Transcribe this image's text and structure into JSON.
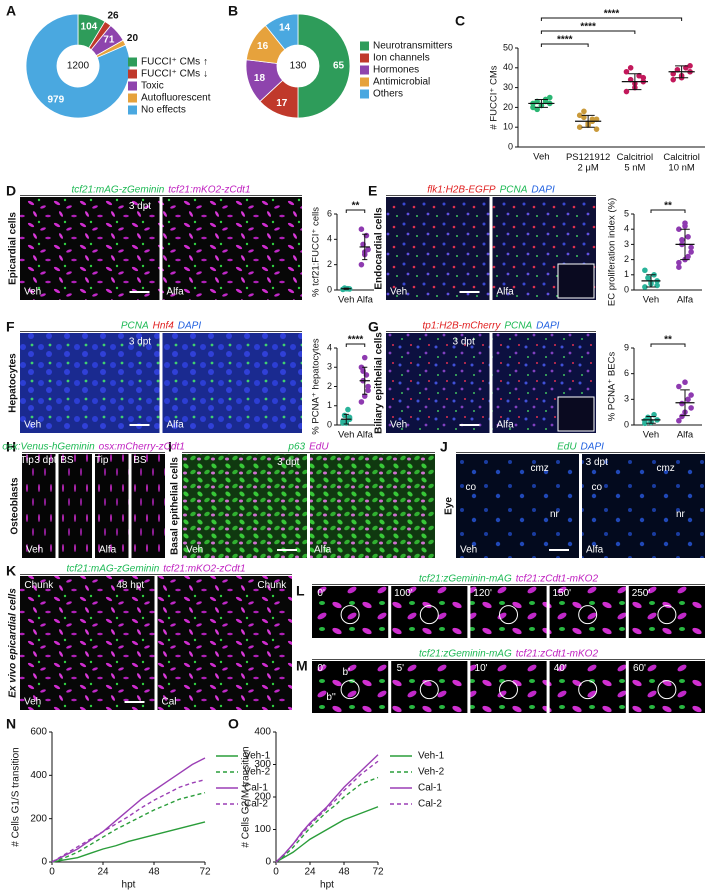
{
  "panel_labels": [
    "A",
    "B",
    "C",
    "D",
    "E",
    "F",
    "G",
    "H",
    "I",
    "J",
    "K",
    "L",
    "M",
    "N",
    "O"
  ],
  "charts": {
    "A": {
      "type": "donut",
      "total": 1200,
      "categories": [
        "FUCCI⁺ CMs ↑",
        "FUCCI⁺ CMs ↓",
        "Toxic",
        "Autofluorescent",
        "No effects"
      ],
      "values": [
        104,
        26,
        71,
        20,
        979
      ],
      "colors": [
        "#2e9c5a",
        "#c0392b",
        "#8e44ad",
        "#e6a23c",
        "#4aa8e0"
      ]
    },
    "B": {
      "type": "donut",
      "total": 130,
      "categories": [
        "Neurotransmitters",
        "Ion channels",
        "Hormones",
        "Antimicrobial",
        "Others"
      ],
      "values": [
        65,
        17,
        18,
        16,
        14
      ],
      "colors": [
        "#2e9c5a",
        "#c0392b",
        "#8e44ad",
        "#e6a23c",
        "#4aa8e0"
      ]
    },
    "C": {
      "type": "dot",
      "ylabel": "# FUCCI⁺ CMs",
      "categories": [
        "Veh",
        "PS121912\n2 μM",
        "Calcitriol\n5 nM",
        "Calcitriol\n10 nM"
      ],
      "colors": [
        "#2bb673",
        "#c99a3b",
        "#c2185b",
        "#c2185b"
      ],
      "groups": [
        {
          "points": [
            20,
            21,
            22,
            23,
            24,
            22,
            21,
            25,
            19,
            23
          ],
          "mean": 22,
          "sd": 2
        },
        {
          "points": [
            10,
            12,
            14,
            15,
            13,
            16,
            11,
            9,
            18,
            14
          ],
          "mean": 13,
          "sd": 3
        },
        {
          "points": [
            28,
            30,
            33,
            34,
            36,
            38,
            32,
            35,
            40
          ],
          "mean": 33,
          "sd": 4
        },
        {
          "points": [
            34,
            36,
            38,
            39,
            40,
            37,
            35,
            41
          ],
          "mean": 38,
          "sd": 3
        }
      ],
      "significance": [
        null,
        "****",
        "****",
        "****"
      ],
      "ylim": [
        0,
        50
      ],
      "yticks": [
        0,
        10,
        20,
        30,
        40,
        50
      ]
    },
    "D": {
      "type": "dot",
      "ylabel": "% tcf21:FUCCI⁺ cells",
      "categories": [
        "Veh",
        "Alfa"
      ],
      "colors": [
        "#2ab39a",
        "#8e3ab0"
      ],
      "groups": [
        {
          "points": [
            0.05,
            0.1,
            0.08,
            0.15,
            0.1,
            0.05
          ],
          "mean": 0.1,
          "sd": 0.05
        },
        {
          "points": [
            2.0,
            2.8,
            3.2,
            3.6,
            4.3,
            4.8,
            3.0
          ],
          "mean": 3.4,
          "sd": 1.0
        }
      ],
      "significance": [
        null,
        "**"
      ],
      "ylim": [
        0,
        6
      ],
      "yticks": [
        0,
        2,
        4,
        6
      ]
    },
    "E": {
      "type": "dot",
      "ylabel": "EC proliferation index (%)",
      "categories": [
        "Veh",
        "Alfa"
      ],
      "colors": [
        "#2ab39a",
        "#8e3ab0"
      ],
      "groups": [
        {
          "points": [
            0.2,
            0.4,
            0.6,
            0.8,
            1.0,
            1.3,
            0.5,
            0.3
          ],
          "mean": 0.6,
          "sd": 0.4
        },
        {
          "points": [
            1.5,
            2.0,
            2.5,
            3.0,
            3.5,
            4.0,
            4.4,
            2.8,
            3.3,
            2.2,
            1.8,
            4.2
          ],
          "mean": 3.0,
          "sd": 1.0
        }
      ],
      "significance": [
        null,
        "**"
      ],
      "ylim": [
        0,
        5
      ],
      "yticks": [
        0,
        1,
        2,
        3,
        4,
        5
      ]
    },
    "F": {
      "type": "dot",
      "ylabel": "% PCNA⁺ hepatocytes",
      "categories": [
        "Veh",
        "Alfa"
      ],
      "colors": [
        "#2ab39a",
        "#8e3ab0"
      ],
      "groups": [
        {
          "points": [
            0.1,
            0.2,
            0.3,
            0.5,
            0.8,
            0.2,
            0.1,
            0.4
          ],
          "mean": 0.3,
          "sd": 0.25
        },
        {
          "points": [
            1.2,
            1.5,
            2.0,
            2.3,
            2.6,
            3.0,
            3.5,
            1.8,
            2.8
          ],
          "mean": 2.3,
          "sd": 0.7
        }
      ],
      "significance": [
        null,
        "****"
      ],
      "ylim": [
        0,
        4
      ],
      "yticks": [
        0,
        1,
        2,
        3,
        4
      ]
    },
    "G": {
      "type": "dot",
      "ylabel": "% PCNA⁺ BECs",
      "categories": [
        "Veh",
        "Alfa"
      ],
      "colors": [
        "#2ab39a",
        "#8e3ab0"
      ],
      "groups": [
        {
          "points": [
            0.2,
            0.4,
            0.6,
            0.9,
            1.2,
            0.5,
            0.3
          ],
          "mean": 0.6,
          "sd": 0.4
        },
        {
          "points": [
            0.5,
            1.5,
            2.0,
            2.5,
            3.0,
            4.5,
            5.0,
            3.5,
            1.0
          ],
          "mean": 2.6,
          "sd": 1.5
        }
      ],
      "significance": [
        null,
        "**"
      ],
      "ylim": [
        0,
        9
      ],
      "yticks": [
        0,
        3,
        6,
        9
      ]
    },
    "N": {
      "type": "line",
      "xlabel": "hpt",
      "ylabel": "# Cells G1/S transition",
      "x": [
        0,
        6,
        12,
        18,
        24,
        30,
        36,
        42,
        48,
        54,
        60,
        66,
        72
      ],
      "xlim": [
        0,
        72
      ],
      "xticks": [
        0,
        24,
        48,
        72
      ],
      "ylim": [
        0,
        600
      ],
      "yticks": [
        0,
        200,
        400,
        600
      ],
      "series": [
        {
          "name": "Veh-1",
          "color": "#2a9d3a",
          "dash": false,
          "values": [
            0,
            10,
            20,
            40,
            60,
            75,
            95,
            110,
            125,
            140,
            155,
            170,
            185
          ]
        },
        {
          "name": "Veh-2",
          "color": "#2a9d3a",
          "dash": true,
          "values": [
            0,
            20,
            45,
            80,
            115,
            150,
            180,
            210,
            240,
            265,
            290,
            305,
            320
          ]
        },
        {
          "name": "Cal-1",
          "color": "#9b3fb5",
          "dash": false,
          "values": [
            0,
            30,
            60,
            100,
            140,
            190,
            240,
            290,
            330,
            370,
            410,
            450,
            480
          ]
        },
        {
          "name": "Cal-2",
          "color": "#9b3fb5",
          "dash": true,
          "values": [
            0,
            35,
            70,
            105,
            140,
            175,
            210,
            250,
            285,
            315,
            345,
            365,
            380
          ]
        }
      ]
    },
    "O": {
      "type": "line",
      "xlabel": "hpt",
      "ylabel": "# Cells G2/M transition",
      "x": [
        0,
        6,
        12,
        18,
        24,
        30,
        36,
        42,
        48,
        54,
        60,
        66,
        72
      ],
      "xlim": [
        0,
        72
      ],
      "xticks": [
        0,
        24,
        48,
        72
      ],
      "ylim": [
        0,
        400
      ],
      "yticks": [
        0,
        100,
        200,
        300,
        400
      ],
      "series": [
        {
          "name": "Veh-1",
          "color": "#2a9d3a",
          "dash": false,
          "values": [
            0,
            15,
            30,
            50,
            70,
            85,
            100,
            115,
            130,
            140,
            150,
            160,
            170
          ]
        },
        {
          "name": "Veh-2",
          "color": "#2a9d3a",
          "dash": true,
          "values": [
            0,
            20,
            45,
            75,
            105,
            130,
            155,
            175,
            200,
            220,
            240,
            250,
            260
          ]
        },
        {
          "name": "Cal-1",
          "color": "#9b3fb5",
          "dash": false,
          "values": [
            0,
            25,
            55,
            90,
            120,
            145,
            170,
            200,
            230,
            255,
            280,
            305,
            330
          ]
        },
        {
          "name": "Cal-2",
          "color": "#9b3fb5",
          "dash": true,
          "values": [
            0,
            25,
            55,
            85,
            115,
            140,
            165,
            190,
            220,
            245,
            270,
            290,
            310
          ]
        }
      ]
    }
  },
  "images": {
    "D": {
      "header": [
        {
          "text": "tcf21:mAG-zGeminin",
          "color": "#1db954"
        },
        {
          "text": "tcf21:mKO2-zCdt1",
          "color": "#c020c0"
        }
      ],
      "side": "Epicardial cells",
      "tiles": [
        {
          "caption": "Veh",
          "notes": [
            "3 dpt"
          ]
        },
        {
          "caption": "Alfa",
          "notes": []
        }
      ]
    },
    "E": {
      "header": [
        {
          "text": "flk1:H2B-EGFP",
          "color": "#e02020"
        },
        {
          "text": "PCNA",
          "color": "#1db954"
        },
        {
          "text": "DAPI",
          "color": "#2060e0"
        }
      ],
      "side": "Endocardial cells",
      "tiles": [
        {
          "caption": "Veh",
          "notes": []
        },
        {
          "caption": "Alfa",
          "notes": []
        }
      ]
    },
    "F": {
      "header": [
        {
          "text": "PCNA",
          "color": "#1db954"
        },
        {
          "text": "Hnf4",
          "color": "#e02020"
        },
        {
          "text": "DAPI",
          "color": "#2060e0"
        }
      ],
      "side": "Hepatocytes",
      "tiles": [
        {
          "caption": "Veh",
          "notes": [
            "3 dpt"
          ]
        },
        {
          "caption": "Alfa",
          "notes": []
        }
      ]
    },
    "G": {
      "header": [
        {
          "text": "tp1:H2B-mCherry",
          "color": "#e02020"
        },
        {
          "text": "PCNA",
          "color": "#1db954"
        },
        {
          "text": "DAPI",
          "color": "#2060e0"
        }
      ],
      "side": "Biliary epithelial cells",
      "tiles": [
        {
          "caption": "Veh",
          "notes": [
            "3 dpt"
          ]
        },
        {
          "caption": "Alfa",
          "notes": []
        }
      ]
    },
    "H": {
      "header": [
        {
          "text": "osx:Venus-hGeminin",
          "color": "#1db954"
        },
        {
          "text": "osx:mCherry-zCdt1",
          "color": "#c020c0"
        }
      ],
      "side": "Osteoblasts",
      "tiles": [
        {
          "caption": "Veh",
          "notes": [
            "Tip",
            "3 dpt"
          ]
        },
        {
          "notes": [
            "BS"
          ]
        },
        {
          "caption": "Alfa",
          "notes": [
            "Tip"
          ]
        },
        {
          "notes": [
            "BS"
          ]
        }
      ]
    },
    "I": {
      "header": [
        {
          "text": "p63",
          "color": "#1db954"
        },
        {
          "text": "EdU",
          "color": "#c020c0"
        }
      ],
      "side": "Basal epithelial cells",
      "tiles": [
        {
          "caption": "Veh",
          "notes": [
            "3 dpt"
          ]
        },
        {
          "caption": "Alfa",
          "notes": []
        }
      ]
    },
    "J": {
      "header": [
        {
          "text": "EdU",
          "color": "#1db954"
        },
        {
          "text": "DAPI",
          "color": "#2060e0"
        }
      ],
      "side": "Eye",
      "tiles": [
        {
          "caption": "Veh",
          "notes": [
            "co",
            "cmz",
            "nr"
          ]
        },
        {
          "caption": "Alfa",
          "notes": [
            "3 dpt",
            "co",
            "cmz",
            "nr"
          ]
        }
      ]
    },
    "K": {
      "header": [
        {
          "text": "tcf21:mAG-zGeminin",
          "color": "#1db954"
        },
        {
          "text": "tcf21:mKO2-zCdt1",
          "color": "#c020c0"
        }
      ],
      "side": "Ex vivo epicardial cells",
      "tiles": [
        {
          "caption": "Veh",
          "notes": [
            "Chunk",
            "48 hpt"
          ]
        },
        {
          "caption": "Cal",
          "notes": [
            "Chunk"
          ]
        }
      ]
    },
    "L": {
      "header": [
        {
          "text": "tcf21:zGeminin-mAG",
          "color": "#1db954"
        },
        {
          "text": "tcf21:zCdt1-mKO2",
          "color": "#c020c0"
        }
      ],
      "tiles": [
        {
          "notes": [
            "0'"
          ]
        },
        {
          "notes": [
            "100'"
          ]
        },
        {
          "notes": [
            "120'"
          ]
        },
        {
          "notes": [
            "150'"
          ]
        },
        {
          "notes": [
            "250'"
          ]
        }
      ]
    },
    "M": {
      "header": [
        {
          "text": "tcf21:zGeminin-mAG",
          "color": "#1db954"
        },
        {
          "text": "tcf21:zCdt1-mKO2",
          "color": "#c020c0"
        }
      ],
      "tiles": [
        {
          "notes": [
            "0'",
            "b'",
            "b''"
          ]
        },
        {
          "notes": [
            "5'"
          ]
        },
        {
          "notes": [
            "10'"
          ]
        },
        {
          "notes": [
            "40'"
          ]
        },
        {
          "notes": [
            "60'"
          ]
        }
      ]
    }
  }
}
